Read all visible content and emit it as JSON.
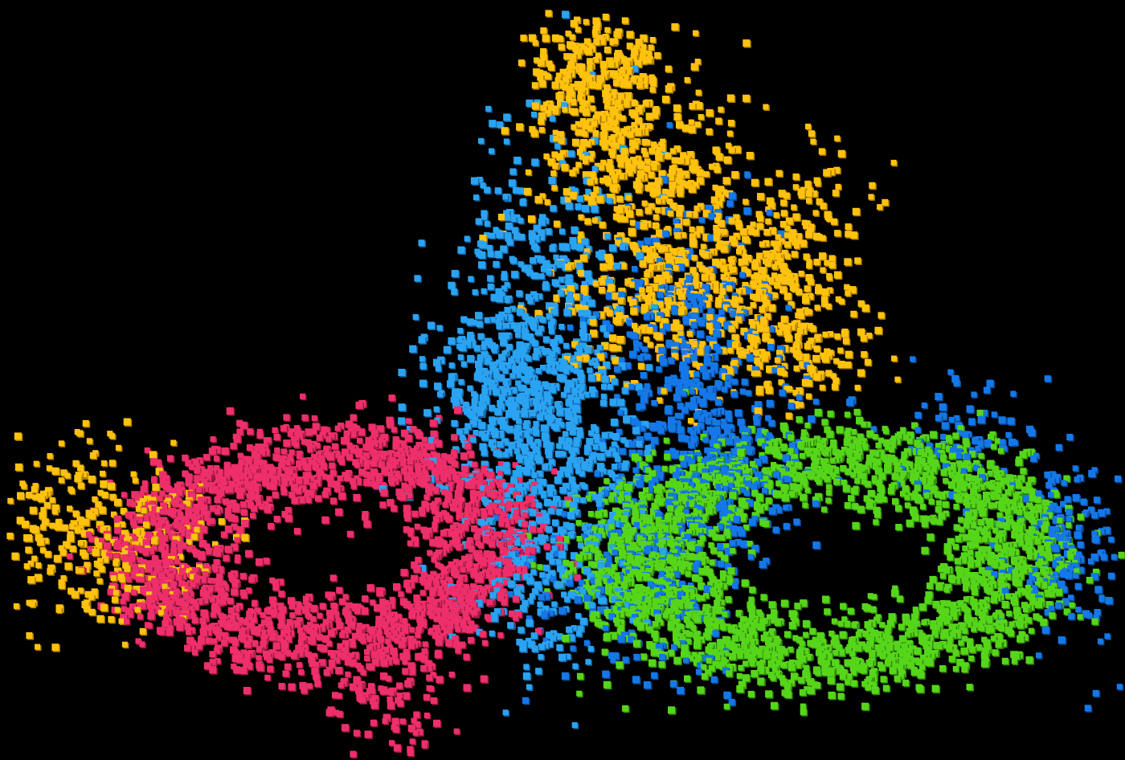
{
  "scene": {
    "background": "#000000",
    "description_visible_text": "",
    "clusters": [
      {
        "key": "yellow",
        "color": "#FFC20E",
        "shade": "#B07D00"
      },
      {
        "key": "light-blue",
        "color": "#2AA3F2",
        "shade": "#1766A6"
      },
      {
        "key": "blue",
        "color": "#1478E8",
        "shade": "#0B4B98"
      },
      {
        "key": "pink",
        "color": "#EE2F6A",
        "shade": "#9C1B43"
      },
      {
        "key": "green",
        "color": "#56D61A",
        "shade": "#338A0C"
      }
    ]
  }
}
